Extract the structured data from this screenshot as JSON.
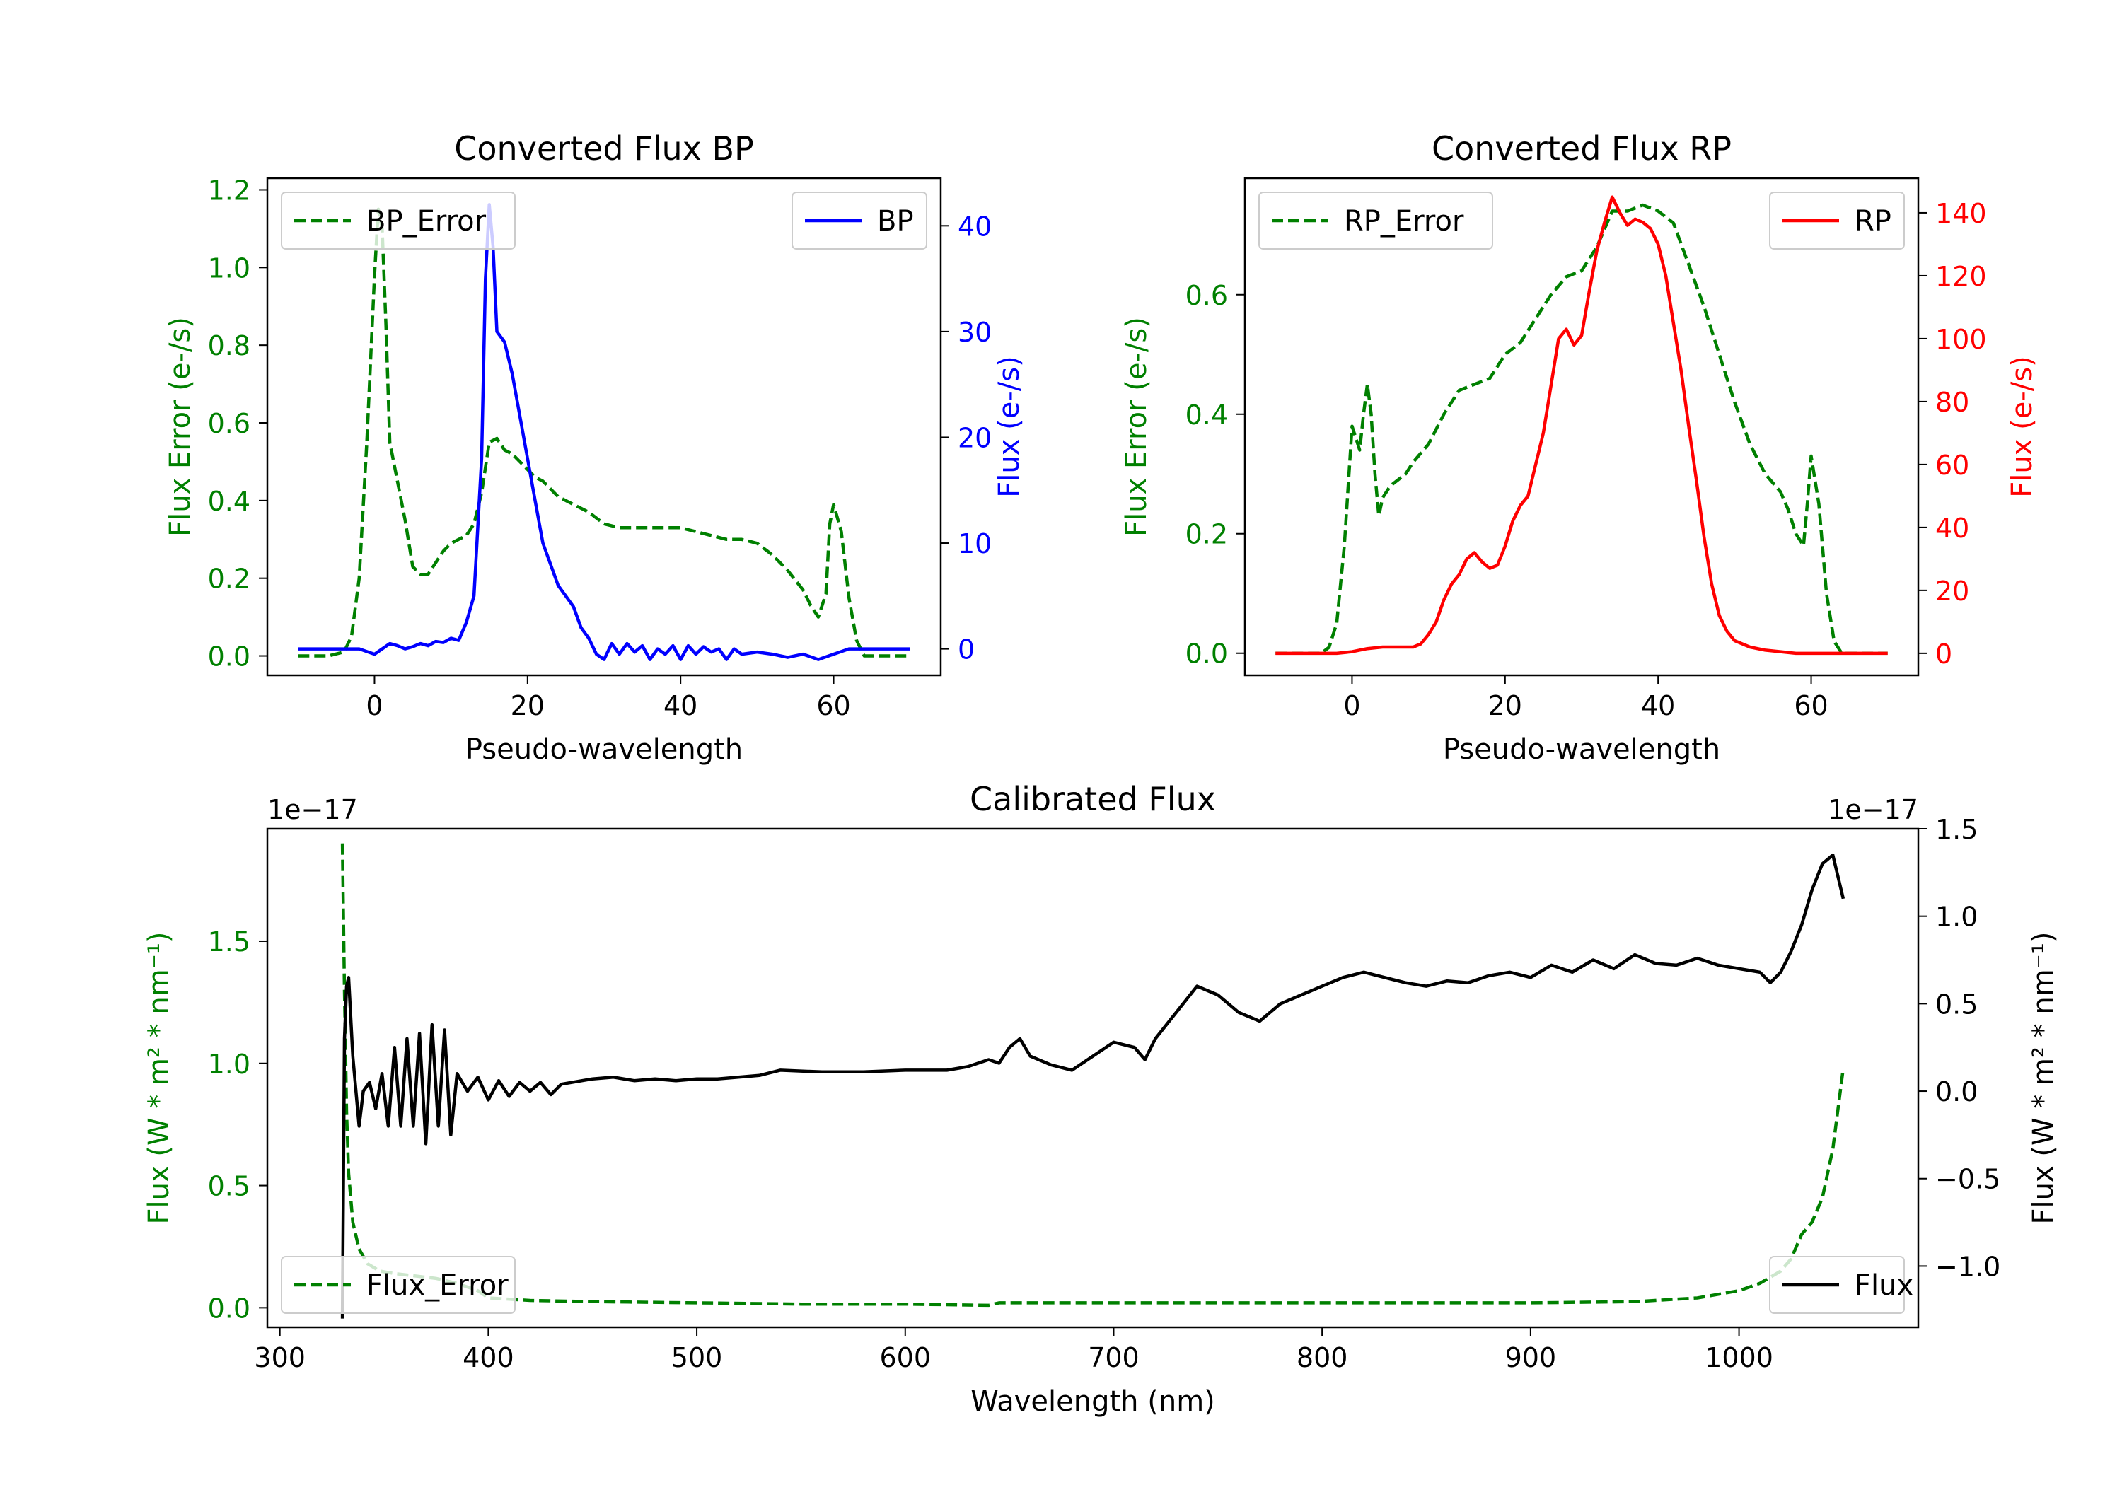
{
  "colors": {
    "bp": "#0000ff",
    "rp": "#ff0000",
    "error": "#008000",
    "flux": "#000000",
    "axis": "#000000"
  },
  "chart_data": [
    {
      "type": "line",
      "title": "Converted Flux BP",
      "xlabel": "Pseudo-wavelength",
      "ylabel_left": "Flux Error (e-/s)",
      "ylabel_right": "Flux (e-/s)",
      "xlim": [
        -14,
        74
      ],
      "ylim_left": [
        -0.05,
        1.23
      ],
      "ylim_right": [
        -2.5,
        44.5
      ],
      "xticks": [
        0,
        20,
        40,
        60
      ],
      "xtick_labels": [
        "0",
        "20",
        "40",
        "60"
      ],
      "yticks_left": [
        0.0,
        0.2,
        0.4,
        0.6,
        0.8,
        1.0,
        1.2
      ],
      "ytick_labels_left": [
        "0.0",
        "0.2",
        "0.4",
        "0.6",
        "0.8",
        "1.0",
        "1.2"
      ],
      "yticks_right": [
        0,
        10,
        20,
        30,
        40
      ],
      "ytick_labels_right": [
        "0",
        "10",
        "20",
        "30",
        "40"
      ],
      "legend_left": "top-left",
      "legend_right": "top-right",
      "series": [
        {
          "name": "BP_Error",
          "axis": "left",
          "style": "dashed",
          "color": "#008000",
          "x": [
            -10,
            -6,
            -4,
            -3,
            -2,
            -1,
            0,
            0.5,
            1,
            1.5,
            2,
            3,
            4,
            5,
            6,
            7,
            8,
            9,
            10,
            12,
            13,
            14,
            15,
            16,
            17,
            18,
            19,
            20,
            21,
            22,
            24,
            26,
            28,
            30,
            32,
            34,
            36,
            38,
            40,
            42,
            44,
            46,
            48,
            50,
            52,
            54,
            56,
            57,
            58,
            59,
            59.5,
            60,
            61,
            62,
            63,
            64,
            66,
            68,
            70
          ],
          "y": [
            0.0,
            0.0,
            0.01,
            0.05,
            0.2,
            0.55,
            0.98,
            1.15,
            1.1,
            0.85,
            0.55,
            0.45,
            0.35,
            0.23,
            0.21,
            0.21,
            0.24,
            0.27,
            0.29,
            0.31,
            0.34,
            0.42,
            0.55,
            0.56,
            0.53,
            0.52,
            0.5,
            0.48,
            0.46,
            0.45,
            0.41,
            0.39,
            0.37,
            0.34,
            0.33,
            0.33,
            0.33,
            0.33,
            0.33,
            0.32,
            0.31,
            0.3,
            0.3,
            0.29,
            0.26,
            0.22,
            0.17,
            0.13,
            0.1,
            0.16,
            0.34,
            0.39,
            0.32,
            0.15,
            0.04,
            0.0,
            0.0,
            0.0,
            0.0
          ]
        },
        {
          "name": "BP",
          "axis": "right",
          "style": "solid",
          "color": "#0000ff",
          "x": [
            -10,
            -6,
            -4,
            -2,
            0,
            1,
            2,
            3,
            4,
            5,
            6,
            7,
            8,
            9,
            10,
            11,
            12,
            13,
            14,
            14.5,
            15,
            15.5,
            16,
            17,
            18,
            19,
            20,
            21,
            22,
            23,
            24,
            25,
            26,
            27,
            28,
            29,
            30,
            31,
            32,
            33,
            34,
            35,
            36,
            37,
            38,
            39,
            40,
            41,
            42,
            43,
            44,
            45,
            46,
            47,
            48,
            50,
            52,
            54,
            56,
            58,
            60,
            62,
            64,
            66,
            68,
            70
          ],
          "y": [
            0,
            0,
            0,
            0,
            -0.5,
            0,
            0.5,
            0.3,
            0,
            0.2,
            0.5,
            0.3,
            0.7,
            0.6,
            1,
            0.8,
            2.5,
            5,
            18,
            35,
            42,
            38,
            30,
            29,
            26,
            22,
            18,
            14,
            10,
            8,
            6,
            5,
            4,
            2,
            1,
            -0.5,
            -1,
            0.5,
            -0.5,
            0.5,
            -0.3,
            0.3,
            -1,
            0,
            -0.5,
            0.3,
            -1,
            0.3,
            -0.5,
            0.2,
            -0.3,
            0,
            -1,
            0,
            -0.5,
            -0.3,
            -0.5,
            -0.8,
            -0.5,
            -1,
            -0.5,
            0,
            0,
            0,
            0,
            0
          ]
        }
      ]
    },
    {
      "type": "line",
      "title": "Converted Flux RP",
      "xlabel": "Pseudo-wavelength",
      "ylabel_left": "Flux Error (e-/s)",
      "ylabel_right": "Flux (e-/s)",
      "xlim": [
        -14,
        74
      ],
      "ylim_left": [
        -0.037,
        0.795
      ],
      "ylim_right": [
        -7,
        151
      ],
      "xticks": [
        0,
        20,
        40,
        60
      ],
      "xtick_labels": [
        "0",
        "20",
        "40",
        "60"
      ],
      "yticks_left": [
        0.0,
        0.2,
        0.4,
        0.6
      ],
      "ytick_labels_left": [
        "0.0",
        "0.2",
        "0.4",
        "0.6"
      ],
      "yticks_right": [
        0,
        20,
        40,
        60,
        80,
        100,
        120,
        140
      ],
      "ytick_labels_right": [
        "0",
        "20",
        "40",
        "60",
        "80",
        "100",
        "120",
        "140"
      ],
      "legend_left": "top-left",
      "legend_right": "top-right",
      "series": [
        {
          "name": "RP_Error",
          "axis": "left",
          "style": "dashed",
          "color": "#008000",
          "x": [
            -10,
            -6,
            -4,
            -3,
            -2,
            -1,
            0,
            1,
            1.5,
            2,
            2.5,
            3,
            3.5,
            4,
            5,
            6,
            7,
            8,
            10,
            12,
            14,
            16,
            18,
            20,
            22,
            24,
            26,
            28,
            30,
            32,
            34,
            35,
            36,
            38,
            40,
            42,
            44,
            46,
            48,
            50,
            52,
            54,
            56,
            57,
            58,
            59,
            59.5,
            60,
            61,
            62,
            63,
            64,
            66,
            68,
            70
          ],
          "y": [
            0.0,
            0.0,
            0.0,
            0.01,
            0.05,
            0.18,
            0.38,
            0.34,
            0.4,
            0.45,
            0.4,
            0.3,
            0.23,
            0.26,
            0.28,
            0.29,
            0.3,
            0.32,
            0.35,
            0.4,
            0.44,
            0.45,
            0.46,
            0.5,
            0.52,
            0.56,
            0.6,
            0.63,
            0.64,
            0.68,
            0.74,
            0.74,
            0.74,
            0.75,
            0.74,
            0.72,
            0.65,
            0.58,
            0.5,
            0.42,
            0.35,
            0.3,
            0.27,
            0.24,
            0.2,
            0.18,
            0.25,
            0.33,
            0.25,
            0.1,
            0.02,
            0.0,
            0.0,
            0.0,
            0.0
          ]
        },
        {
          "name": "RP",
          "axis": "right",
          "style": "solid",
          "color": "#ff0000",
          "x": [
            -10,
            -6,
            -4,
            -2,
            0,
            2,
            4,
            6,
            8,
            9,
            10,
            11,
            12,
            13,
            14,
            15,
            16,
            17,
            18,
            19,
            20,
            21,
            22,
            23,
            24,
            25,
            26,
            27,
            28,
            29,
            30,
            31,
            32,
            33,
            34,
            35,
            36,
            37,
            38,
            39,
            40,
            41,
            42,
            43,
            44,
            45,
            46,
            47,
            48,
            49,
            50,
            52,
            54,
            56,
            58,
            60,
            62,
            64,
            66,
            68,
            70
          ],
          "y": [
            0,
            0,
            0,
            0,
            0.5,
            1.5,
            2,
            2,
            2,
            3,
            6,
            10,
            17,
            22,
            25,
            30,
            32,
            29,
            27,
            28,
            34,
            42,
            47,
            50,
            60,
            70,
            85,
            100,
            103,
            98,
            101,
            115,
            128,
            137,
            145,
            140,
            136,
            138,
            137,
            135,
            130,
            120,
            105,
            90,
            72,
            55,
            37,
            22,
            12,
            7,
            4,
            2,
            1,
            0.5,
            0,
            0,
            0,
            0,
            0,
            0,
            0
          ]
        }
      ]
    },
    {
      "type": "line",
      "title": "Calibrated Flux",
      "xlabel": "Wavelength (nm)",
      "ylabel_left": "Flux (W * m² * nm⁻¹)",
      "ylabel_right": "Flux (W * m² * nm⁻¹)",
      "offset_left": "1e−17",
      "offset_right": "1e−17",
      "xlim": [
        294,
        1086
      ],
      "ylim_left": [
        -0.08,
        1.96
      ],
      "ylim_right": [
        -1.35,
        1.5
      ],
      "xticks": [
        300,
        400,
        500,
        600,
        700,
        800,
        900,
        1000
      ],
      "xtick_labels": [
        "300",
        "400",
        "500",
        "600",
        "700",
        "800",
        "900",
        "1000"
      ],
      "yticks_left": [
        0.0,
        0.5,
        1.0,
        1.5
      ],
      "ytick_labels_left": [
        "0.0",
        "0.5",
        "1.0",
        "1.5"
      ],
      "yticks_right": [
        -1.0,
        -0.5,
        0.0,
        0.5,
        1.0,
        1.5
      ],
      "ytick_labels_right": [
        "−1.0",
        "−0.5",
        "0.0",
        "0.5",
        "1.0",
        "1.5"
      ],
      "legend_left": "bottom-left",
      "legend_right": "bottom-right",
      "series": [
        {
          "name": "Flux_Error",
          "axis": "left",
          "style": "dashed",
          "color": "#008000",
          "x": [
            330,
            331,
            332,
            333,
            335,
            338,
            342,
            348,
            355,
            365,
            375,
            385,
            395,
            400,
            420,
            450,
            500,
            550,
            600,
            640,
            645,
            700,
            800,
            900,
            950,
            980,
            1000,
            1010,
            1020,
            1025,
            1030,
            1035,
            1040,
            1045,
            1050
          ],
          "y": [
            1.9,
            1.3,
            0.8,
            0.55,
            0.35,
            0.24,
            0.18,
            0.15,
            0.14,
            0.13,
            0.12,
            0.1,
            0.07,
            0.04,
            0.03,
            0.025,
            0.02,
            0.015,
            0.015,
            0.01,
            0.02,
            0.02,
            0.02,
            0.02,
            0.025,
            0.04,
            0.07,
            0.1,
            0.15,
            0.2,
            0.3,
            0.35,
            0.45,
            0.65,
            0.98
          ]
        },
        {
          "name": "Flux",
          "axis": "right",
          "style": "solid",
          "color": "#000000",
          "x": [
            330,
            331,
            332,
            333,
            335,
            338,
            340,
            343,
            346,
            349,
            352,
            355,
            358,
            361,
            364,
            367,
            370,
            373,
            376,
            379,
            382,
            385,
            390,
            395,
            400,
            405,
            410,
            415,
            420,
            425,
            430,
            435,
            440,
            450,
            460,
            470,
            480,
            490,
            500,
            510,
            520,
            530,
            540,
            560,
            580,
            600,
            620,
            630,
            640,
            645,
            650,
            655,
            660,
            670,
            680,
            690,
            700,
            710,
            715,
            720,
            730,
            740,
            750,
            760,
            770,
            780,
            790,
            800,
            810,
            820,
            830,
            840,
            850,
            860,
            870,
            880,
            890,
            900,
            910,
            920,
            930,
            940,
            950,
            960,
            970,
            980,
            990,
            1000,
            1010,
            1015,
            1020,
            1025,
            1030,
            1035,
            1040,
            1045,
            1050
          ],
          "y": [
            -1.3,
            0.3,
            0.6,
            0.65,
            0.2,
            -0.2,
            0.0,
            0.05,
            -0.1,
            0.1,
            -0.2,
            0.25,
            -0.2,
            0.3,
            -0.2,
            0.33,
            -0.3,
            0.38,
            -0.2,
            0.35,
            -0.25,
            0.1,
            0.0,
            0.08,
            -0.05,
            0.06,
            -0.03,
            0.05,
            0.0,
            0.05,
            -0.02,
            0.04,
            0.05,
            0.07,
            0.08,
            0.06,
            0.07,
            0.06,
            0.07,
            0.07,
            0.08,
            0.09,
            0.12,
            0.11,
            0.11,
            0.12,
            0.12,
            0.14,
            0.18,
            0.16,
            0.25,
            0.3,
            0.2,
            0.15,
            0.12,
            0.2,
            0.28,
            0.25,
            0.18,
            0.3,
            0.45,
            0.6,
            0.55,
            0.45,
            0.4,
            0.5,
            0.55,
            0.6,
            0.65,
            0.68,
            0.65,
            0.62,
            0.6,
            0.63,
            0.62,
            0.66,
            0.68,
            0.65,
            0.72,
            0.68,
            0.75,
            0.7,
            0.78,
            0.73,
            0.72,
            0.76,
            0.72,
            0.7,
            0.68,
            0.62,
            0.68,
            0.8,
            0.95,
            1.15,
            1.3,
            1.35,
            1.1
          ]
        }
      ]
    }
  ]
}
